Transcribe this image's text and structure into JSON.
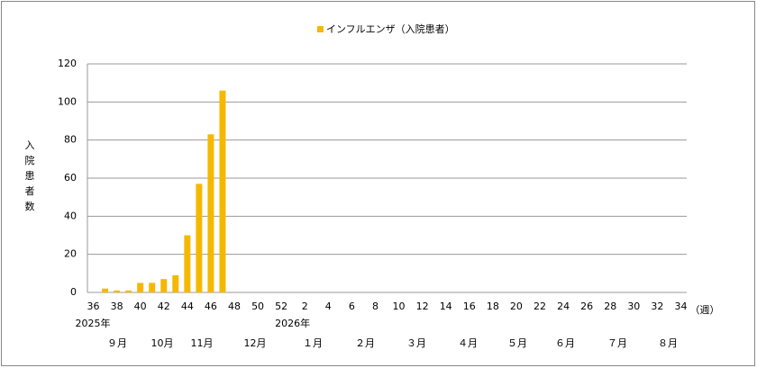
{
  "chart_data": {
    "type": "bar",
    "legend": "インフルエンザ（入院患者）",
    "color": "#f5b800",
    "y_label": "入院患者数",
    "x_unit": "（週）",
    "year_labels": [
      "2025年",
      "2026年"
    ],
    "month_labels": [
      "９月",
      "10月",
      "11月",
      "12月",
      "１月",
      "２月",
      "３月",
      "４月",
      "５月",
      "６月",
      "７月",
      "８月"
    ],
    "categories": [
      "36",
      null,
      "38",
      null,
      "40",
      null,
      "42",
      null,
      "44",
      null,
      "46",
      null,
      "48",
      null,
      "50",
      null,
      "52",
      null,
      "2",
      null,
      "4",
      null,
      "6",
      null,
      "8",
      null,
      "10",
      null,
      "12",
      null,
      "14",
      null,
      "16",
      null,
      "18",
      null,
      "20",
      null,
      "22",
      null,
      "24",
      null,
      "26",
      null,
      "28",
      null,
      "30",
      null,
      "32",
      null,
      "34"
    ],
    "values": [
      null,
      2,
      1,
      1,
      5,
      5,
      7,
      9,
      30,
      57,
      83,
      106,
      null,
      null,
      null,
      null,
      null,
      null,
      null,
      null,
      null,
      null,
      null,
      null,
      null,
      null,
      null,
      null,
      null,
      null,
      null,
      null,
      null,
      null,
      null,
      null,
      null,
      null,
      null,
      null,
      null,
      null,
      null,
      null,
      null,
      null,
      null,
      null,
      null,
      null,
      null
    ],
    "ylim": [
      0,
      120
    ],
    "yticks": [
      0,
      20,
      40,
      60,
      80,
      100,
      120
    ],
    "grid": true
  }
}
